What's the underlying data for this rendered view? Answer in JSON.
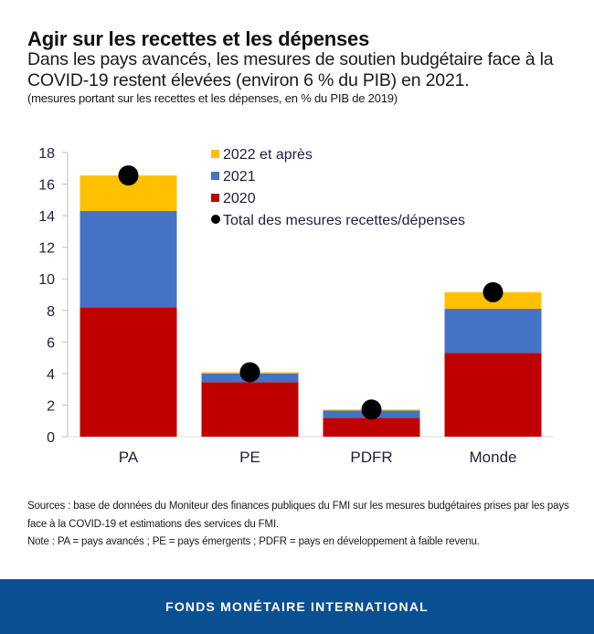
{
  "header": {
    "title": "Agir sur les recettes et les dépenses",
    "subtitle": "Dans les pays avancés, les mesures de soutien budgétaire face à la COVID-19 restent élevées (environ 6 % du PIB) en 2021.",
    "units": "(mesures portant sur les recettes et les dépenses, en % du PIB de 2019)"
  },
  "chart_data": {
    "type": "bar",
    "stacked": true,
    "title": "",
    "xlabel": "",
    "ylabel": "",
    "categories": [
      "PA",
      "PE",
      "PDFR",
      "Monde"
    ],
    "ylim": [
      0,
      18
    ],
    "yticks": [
      0,
      2,
      4,
      6,
      8,
      10,
      12,
      14,
      16,
      18
    ],
    "grid": false,
    "legend_position": "top-center",
    "series": [
      {
        "name": "2020",
        "color": "#c00000",
        "values": [
          8.2,
          3.45,
          1.2,
          5.3
        ]
      },
      {
        "name": "2021",
        "color": "#4472c4",
        "values": [
          6.1,
          0.55,
          0.45,
          2.8
        ]
      },
      {
        "name": "2022 et après",
        "color": "#ffc000",
        "values": [
          2.25,
          0.08,
          0.07,
          1.05
        ]
      }
    ],
    "markers": {
      "name": "Total des mesures recettes/dépenses",
      "color": "#000000",
      "values": [
        16.55,
        4.08,
        1.72,
        9.15
      ]
    },
    "legend": [
      {
        "label": "2022 et après",
        "color": "#ffc000",
        "shape": "square"
      },
      {
        "label": "2021",
        "color": "#4472c4",
        "shape": "square"
      },
      {
        "label": "2020",
        "color": "#c00000",
        "shape": "square"
      },
      {
        "label": "Total des mesures recettes/dépenses",
        "color": "#000000",
        "shape": "circle"
      }
    ]
  },
  "notes": {
    "sources": "Sources : base de données du Moniteur des finances publiques du FMI sur les mesures budgétaires prises par les pays face à la COVID-19 et estimations des services du FMI.",
    "note": "Note : PA = pays avancés ; PE = pays émergents ; PDFR = pays en développement à faible revenu."
  },
  "footer": {
    "label": "FONDS MONÉTAIRE INTERNATIONAL",
    "color": "#0b4f93"
  }
}
